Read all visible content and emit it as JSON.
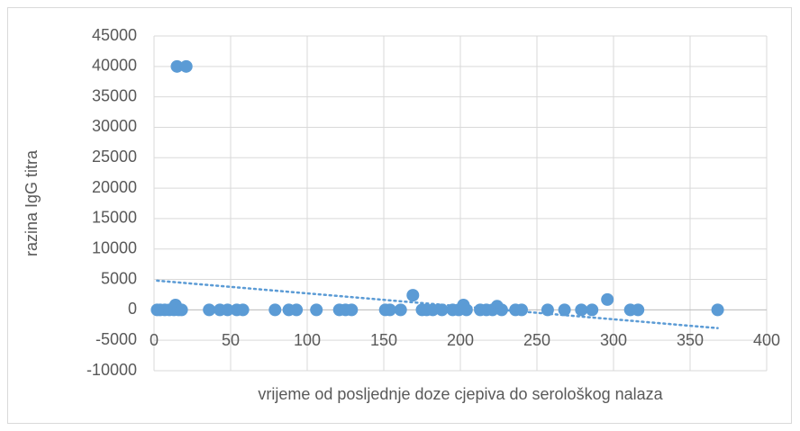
{
  "chart_data": {
    "type": "scatter",
    "x_label": "vrijeme od posljednje doze cjepiva do serološkog nalaza",
    "y_label": "razina IgG titra",
    "xlim": [
      0,
      400
    ],
    "xticks": [
      0,
      50,
      100,
      150,
      200,
      250,
      300,
      350,
      400
    ],
    "ylim": [
      -10000,
      45000
    ],
    "yticks": [
      -10000,
      -5000,
      0,
      5000,
      10000,
      15000,
      20000,
      25000,
      30000,
      35000,
      40000,
      45000
    ],
    "grid": true,
    "color": "#5b9bd5",
    "x": [
      2,
      4,
      7,
      10,
      13,
      14,
      16,
      18,
      15,
      21,
      36,
      43,
      48,
      54,
      58,
      79,
      88,
      93,
      106,
      121,
      125,
      129,
      151,
      154,
      161,
      169,
      175,
      178,
      182,
      188,
      195,
      199,
      202,
      204,
      213,
      217,
      221,
      224,
      227,
      236,
      240,
      257,
      268,
      279,
      286,
      296,
      311,
      316,
      368
    ],
    "values": [
      0,
      0,
      0,
      0,
      0,
      800,
      0,
      0,
      40000,
      40000,
      0,
      0,
      0,
      0,
      0,
      0,
      0,
      0,
      0,
      0,
      0,
      0,
      0,
      0,
      0,
      2400,
      0,
      0,
      0,
      0,
      0,
      0,
      800,
      0,
      0,
      0,
      0,
      600,
      0,
      0,
      0,
      0,
      0,
      0,
      0,
      1700,
      0,
      0,
      0
    ],
    "trendline": {
      "color": "#5b9bd5",
      "x": [
        2,
        368
      ],
      "values": [
        4800,
        -3000
      ]
    }
  }
}
